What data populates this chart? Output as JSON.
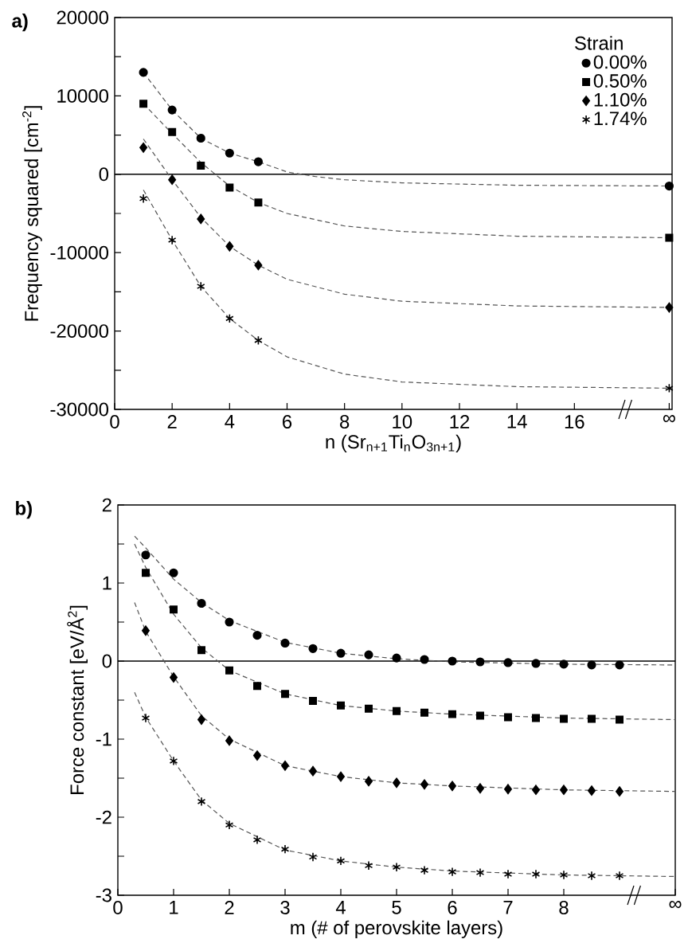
{
  "chart_data": [
    {
      "type": "scatter",
      "xlabel": "n (Sr$_{n+1}$Ti$_{n}$O$_{3n+1}$)",
      "ylabel": "Frequency squared [cm$^{-2}$]",
      "legend": "top right",
      "legend_title": "Strain",
      "annotations": [
        "a)"
      ],
      "xlim": [
        0,
        19.4
      ],
      "ylim": [
        -30000,
        20000
      ],
      "xticks": [
        0,
        2,
        4,
        6,
        8,
        10,
        12,
        14,
        16,
        {
          "value": 19.3,
          "label": "∞"
        }
      ],
      "yticks": [
        -30000,
        {
          "value": -25000,
          "label": null
        },
        -20000,
        {
          "value": -15000,
          "label": null
        },
        -10000,
        {
          "value": -5000,
          "label": null
        },
        0,
        {
          "value": 5000,
          "label": null
        },
        10000,
        {
          "value": 15000,
          "label": null
        },
        20000
      ],
      "ref_lines": [
        {
          "axis": "y",
          "value": 0,
          "color": "#000000",
          "line_style": "solid"
        }
      ],
      "series": [
        {
          "name": "0.00%",
          "marker": "circle",
          "color": "#000000",
          "x": [
            1,
            2,
            3,
            4,
            5,
            19.3
          ],
          "values": [
            13000,
            8200,
            4600,
            2700,
            1600,
            -1500
          ]
        },
        {
          "name": "0.50%",
          "marker": "square",
          "color": "#000000",
          "x": [
            1,
            2,
            3,
            4,
            5,
            19.3
          ],
          "values": [
            9000,
            5400,
            1100,
            -1700,
            -3600,
            -8100
          ]
        },
        {
          "name": "1.10%",
          "marker": "diamond",
          "color": "#000000",
          "x": [
            1,
            2,
            3,
            4,
            5,
            19.3
          ],
          "values": [
            3400,
            -700,
            -5700,
            -9200,
            -11600,
            -17000
          ]
        },
        {
          "name": "1.74%",
          "marker": "cross",
          "color": "#000000",
          "x": [
            1,
            2,
            3,
            4,
            5,
            19.3
          ],
          "values": [
            -3100,
            -8400,
            -14300,
            -18400,
            -21200,
            -27300
          ]
        },
        {
          "type": "line",
          "marker": "none",
          "line_style": "dashed",
          "color": "#555555",
          "x": [
            1,
            2,
            3,
            4,
            5,
            6,
            7,
            8,
            10,
            14,
            19.4
          ],
          "values": [
            13000,
            8200,
            4600,
            2700,
            1600,
            300,
            -300,
            -700,
            -1100,
            -1400,
            -1500
          ]
        },
        {
          "type": "line",
          "marker": "none",
          "line_style": "dashed",
          "color": "#555555",
          "x": [
            1,
            2,
            3,
            4,
            5,
            6,
            8,
            10,
            14,
            19.4
          ],
          "values": [
            9000,
            5200,
            1500,
            -1500,
            -3600,
            -5000,
            -6600,
            -7300,
            -7900,
            -8100
          ]
        },
        {
          "type": "line",
          "marker": "none",
          "line_style": "dashed",
          "color": "#555555",
          "x": [
            1,
            2,
            3,
            4,
            5,
            6,
            8,
            10,
            14,
            19.4
          ],
          "values": [
            4500,
            -700,
            -5500,
            -9200,
            -11600,
            -13400,
            -15300,
            -16200,
            -16800,
            -17000
          ]
        },
        {
          "type": "line",
          "marker": "none",
          "line_style": "dashed",
          "color": "#555555",
          "x": [
            1,
            2,
            3,
            4,
            5,
            6,
            8,
            10,
            14,
            19.4
          ],
          "values": [
            -2000,
            -8400,
            -14300,
            -18400,
            -21200,
            -23300,
            -25500,
            -26500,
            -27100,
            -27300
          ]
        }
      ]
    },
    {
      "type": "scatter",
      "xlabel": "m (# of perovskite layers)",
      "ylabel": "Force constant [eV/Å$^{2}$]",
      "annotations": [
        "b)"
      ],
      "xlim": [
        0,
        10
      ],
      "ylim": [
        -3,
        2
      ],
      "xticks": [
        0,
        1,
        2,
        3,
        4,
        5,
        6,
        7,
        8,
        {
          "value": 10,
          "label": "∞"
        }
      ],
      "yticks": [
        -3,
        {
          "value": -2.5,
          "label": null
        },
        -2,
        {
          "value": -1.5,
          "label": null
        },
        -1,
        {
          "value": -0.5,
          "label": null
        },
        0,
        {
          "value": 0.5,
          "label": null
        },
        1,
        {
          "value": 1.5,
          "label": null
        },
        2
      ],
      "ref_lines": [
        {
          "axis": "y",
          "value": 0,
          "color": "#000000",
          "line_style": "solid"
        }
      ],
      "series": [
        {
          "marker": "circle",
          "color": "#000000",
          "x": [
            0.5,
            1,
            1.5,
            2,
            2.5,
            3,
            3.5,
            4,
            4.5,
            5,
            5.5,
            6,
            6.5,
            7,
            7.5,
            8,
            8.5,
            9
          ],
          "values": [
            1.36,
            1.13,
            0.74,
            0.5,
            0.33,
            0.23,
            0.16,
            0.1,
            0.08,
            0.04,
            0.02,
            0.0,
            -0.01,
            -0.02,
            -0.03,
            -0.04,
            -0.05,
            -0.05
          ]
        },
        {
          "marker": "square",
          "color": "#000000",
          "x": [
            0.5,
            1,
            1.5,
            2,
            2.5,
            3,
            3.5,
            4,
            4.5,
            5,
            5.5,
            6,
            6.5,
            7,
            7.5,
            8,
            8.5,
            9
          ],
          "values": [
            1.13,
            0.66,
            0.14,
            -0.12,
            -0.32,
            -0.42,
            -0.51,
            -0.57,
            -0.61,
            -0.64,
            -0.66,
            -0.68,
            -0.7,
            -0.72,
            -0.73,
            -0.74,
            -0.74,
            -0.75
          ]
        },
        {
          "marker": "diamond",
          "color": "#000000",
          "x": [
            0.5,
            1,
            1.5,
            2,
            2.5,
            3,
            3.5,
            4,
            4.5,
            5,
            5.5,
            6,
            6.5,
            7,
            7.5,
            8,
            8.5,
            9
          ],
          "values": [
            0.39,
            -0.21,
            -0.75,
            -1.02,
            -1.21,
            -1.34,
            -1.41,
            -1.48,
            -1.54,
            -1.56,
            -1.58,
            -1.6,
            -1.63,
            -1.64,
            -1.65,
            -1.65,
            -1.66,
            -1.67
          ]
        },
        {
          "marker": "cross",
          "color": "#000000",
          "x": [
            0.5,
            1,
            1.5,
            2,
            2.5,
            3,
            3.5,
            4,
            4.5,
            5,
            5.5,
            6,
            6.5,
            7,
            7.5,
            8,
            8.5,
            9
          ],
          "values": [
            -0.73,
            -1.28,
            -1.8,
            -2.1,
            -2.29,
            -2.41,
            -2.51,
            -2.56,
            -2.62,
            -2.64,
            -2.68,
            -2.7,
            -2.71,
            -2.73,
            -2.73,
            -2.74,
            -2.75,
            -2.75
          ]
        },
        {
          "type": "line",
          "marker": "none",
          "line_style": "dashed",
          "color": "#555555",
          "x": [
            0.3,
            0.5,
            1,
            1.5,
            2,
            3,
            4,
            5,
            6,
            8,
            10
          ],
          "values": [
            1.6,
            1.45,
            1.05,
            0.75,
            0.52,
            0.24,
            0.1,
            0.03,
            -0.01,
            -0.04,
            -0.05
          ]
        },
        {
          "type": "line",
          "marker": "none",
          "line_style": "dashed",
          "color": "#555555",
          "x": [
            0.3,
            0.5,
            1,
            1.5,
            2,
            3,
            4,
            5,
            6,
            8,
            10
          ],
          "values": [
            1.5,
            1.2,
            0.6,
            0.17,
            -0.12,
            -0.42,
            -0.57,
            -0.64,
            -0.68,
            -0.73,
            -0.75
          ]
        },
        {
          "type": "line",
          "marker": "none",
          "line_style": "dashed",
          "color": "#555555",
          "x": [
            0.3,
            0.5,
            1,
            1.5,
            2,
            3,
            4,
            5,
            6,
            8,
            10
          ],
          "values": [
            0.75,
            0.38,
            -0.2,
            -0.7,
            -1.0,
            -1.34,
            -1.48,
            -1.56,
            -1.6,
            -1.65,
            -1.67
          ]
        },
        {
          "type": "line",
          "marker": "none",
          "line_style": "dashed",
          "color": "#555555",
          "x": [
            0.3,
            0.5,
            1,
            1.5,
            2,
            3,
            4,
            5,
            6,
            8,
            10
          ],
          "values": [
            -0.4,
            -0.72,
            -1.28,
            -1.78,
            -2.08,
            -2.42,
            -2.56,
            -2.64,
            -2.69,
            -2.74,
            -2.76
          ]
        }
      ]
    }
  ]
}
